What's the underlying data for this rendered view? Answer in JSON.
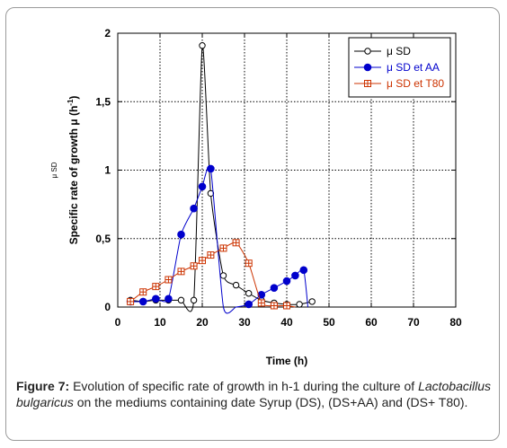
{
  "chart_data": {
    "type": "line",
    "xlabel": "Time (h)",
    "ylabel": "Specific rate of growth μ (h",
    "ylabel_sup": "-1",
    "ylabel_close": ")",
    "side_label": "μ SD",
    "xlim": [
      0,
      80
    ],
    "ylim": [
      0,
      2
    ],
    "x_ticks": [
      0,
      10,
      20,
      30,
      40,
      50,
      60,
      70,
      80
    ],
    "x_tick_labels": [
      "0",
      "10",
      "20",
      "30",
      "40",
      "50",
      "60",
      "70",
      "80"
    ],
    "y_ticks": [
      0,
      0.5,
      1,
      1.5,
      2
    ],
    "y_tick_labels": [
      "0",
      "0,5",
      "1",
      "1,5",
      "2"
    ],
    "grid": true,
    "legend_position": "top-right",
    "series": [
      {
        "name": "μ SD",
        "color": "#000000",
        "marker": "open-circle",
        "x": [
          3,
          6,
          9,
          12,
          15,
          18,
          20,
          22,
          25,
          28,
          31,
          34,
          37,
          40,
          43,
          46
        ],
        "y": [
          0.05,
          0.04,
          0.05,
          0.05,
          0.05,
          0.05,
          1.91,
          0.83,
          0.23,
          0.16,
          0.1,
          0.05,
          0.03,
          0.02,
          0.02,
          0.04
        ]
      },
      {
        "name": "μ SD et AA",
        "color": "#0000cc",
        "marker": "filled-circle",
        "x": [
          3,
          6,
          9,
          12,
          15,
          18,
          20,
          22,
          25,
          28,
          31,
          34,
          37,
          40,
          42,
          44,
          45
        ],
        "y": [
          0.04,
          0.04,
          0.06,
          0.06,
          0.53,
          0.72,
          0.88,
          1.01,
          0.0,
          0.0,
          0.02,
          0.09,
          0.14,
          0.19,
          0.23,
          0.27,
          0.0
        ]
      },
      {
        "name": "μ SD et T80",
        "color": "#cc3300",
        "marker": "open-square-cross",
        "x": [
          3,
          6,
          9,
          12,
          15,
          18,
          20,
          22,
          25,
          28,
          31,
          34,
          37,
          40,
          42
        ],
        "y": [
          0.04,
          0.11,
          0.15,
          0.2,
          0.26,
          0.3,
          0.34,
          0.38,
          0.43,
          0.47,
          0.32,
          0.03,
          0.01,
          0.01,
          0.0
        ]
      }
    ]
  },
  "caption": {
    "label": "Figure 7:",
    "text_1": " Evolution of specific rate of growth in h-1 during the culture of ",
    "italic": "Lactobacillus bulgaricus",
    "text_2": " on the mediums containing date Syrup (DS), (DS+AA) and (DS+ T80)."
  }
}
